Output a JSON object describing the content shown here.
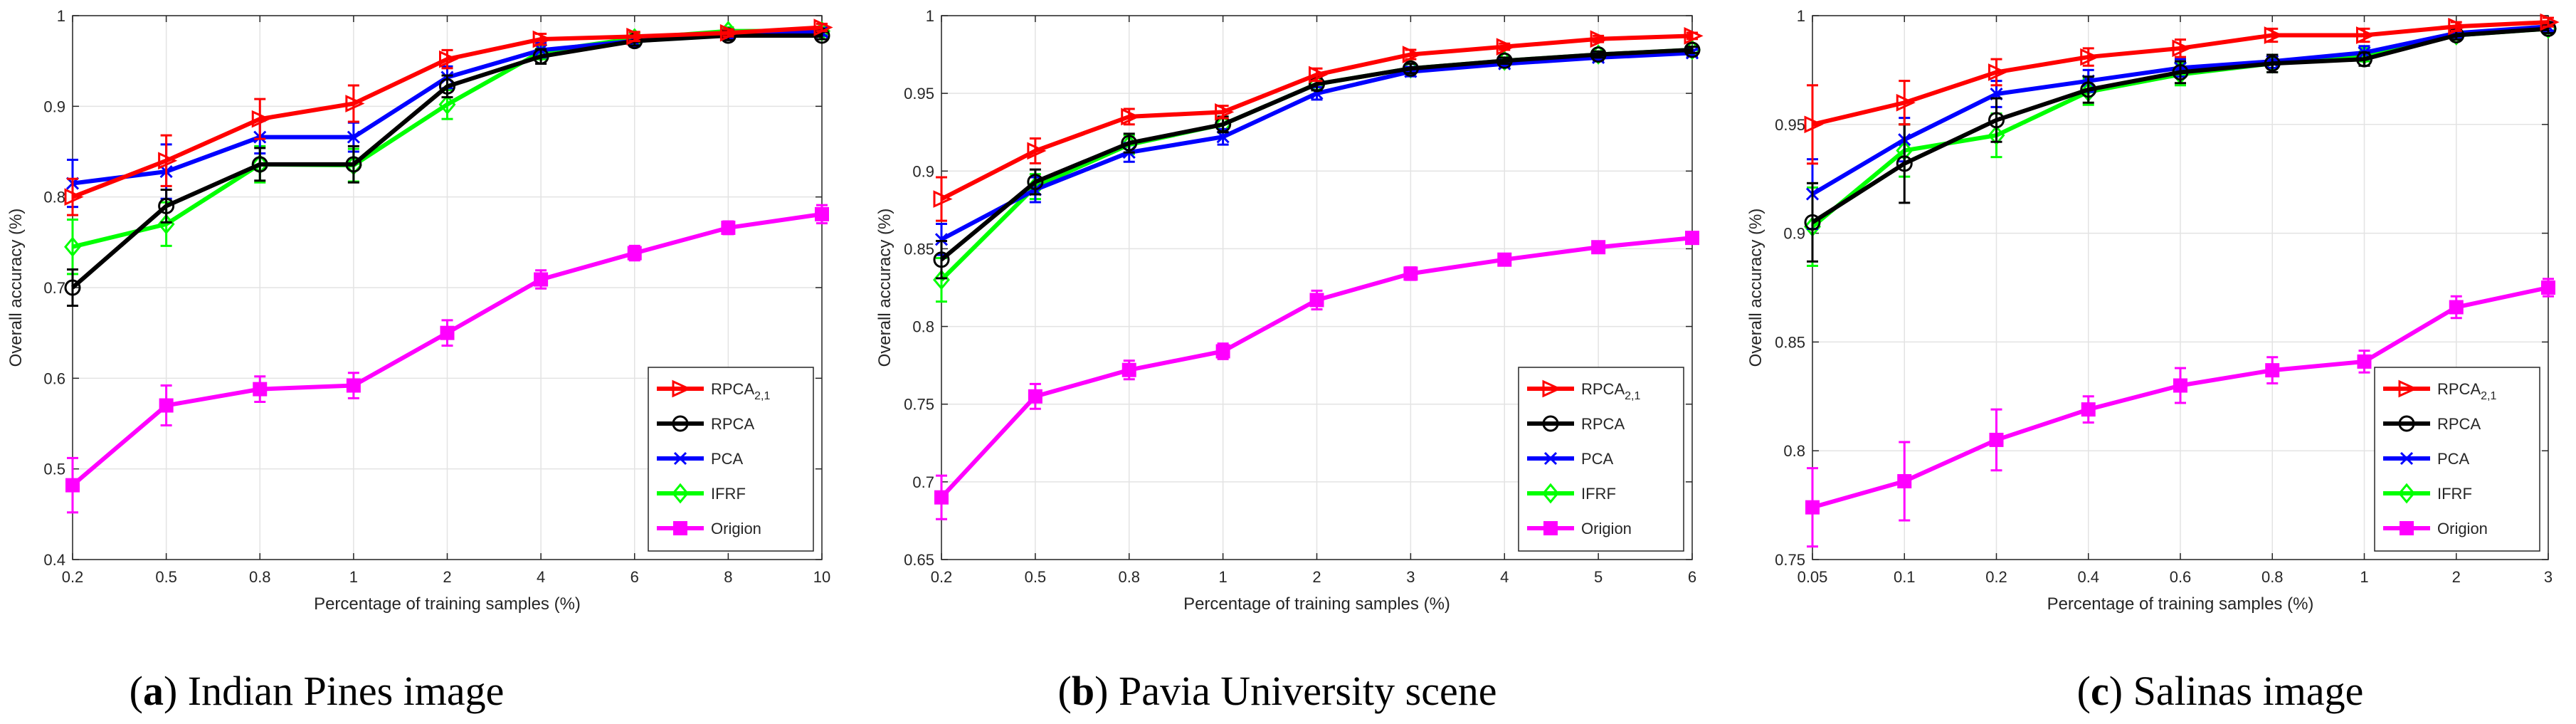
{
  "figure": {
    "captions": [
      {
        "letter": "a",
        "text": "Indian Pines image"
      },
      {
        "letter": "b",
        "text": "Pavia University scene"
      },
      {
        "letter": "c",
        "text": "Salinas image"
      }
    ]
  },
  "chart_data": [
    {
      "type": "line",
      "title": "",
      "xlabel": "Percentage of training samples (%)",
      "ylabel": "Overall accuracy (%)",
      "categories": [
        "0.2",
        "0.5",
        "0.8",
        "1",
        "2",
        "4",
        "6",
        "8",
        "10"
      ],
      "ylim": [
        0.4,
        1.0
      ],
      "yticks": [
        0.4,
        0.5,
        0.6,
        0.7,
        0.8,
        0.9,
        1
      ],
      "ytick_labels": [
        "0.4",
        "0.5",
        "0.6",
        "0.7",
        "0.8",
        "0.9",
        "1"
      ],
      "grid": true,
      "legend": "bottom-right",
      "series": [
        {
          "name": "RPCA",
          "sub": "2,1",
          "color": "#ff0000",
          "marker": "triangle-right",
          "values": [
            0.8,
            0.84,
            0.886,
            0.903,
            0.952,
            0.974,
            0.977,
            0.981,
            0.987
          ],
          "errors": [
            0.02,
            0.028,
            0.022,
            0.02,
            0.01,
            0.006,
            0.005,
            0.004,
            0.004
          ]
        },
        {
          "name": "RPCA",
          "sub": "",
          "color": "#000000",
          "marker": "circle",
          "values": [
            0.7,
            0.79,
            0.836,
            0.836,
            0.922,
            0.955,
            0.972,
            0.978,
            0.978
          ],
          "errors": [
            0.02,
            0.018,
            0.018,
            0.02,
            0.012,
            0.008,
            0.005,
            0.005,
            0.004
          ]
        },
        {
          "name": "PCA",
          "sub": "",
          "color": "#0000ff",
          "marker": "x",
          "values": [
            0.815,
            0.828,
            0.866,
            0.866,
            0.932,
            0.962,
            0.972,
            0.979,
            0.982
          ],
          "errors": [
            0.026,
            0.03,
            0.018,
            0.016,
            0.012,
            0.008,
            0.006,
            0.004,
            0.004
          ]
        },
        {
          "name": "IFRF",
          "sub": "",
          "color": "#00ff00",
          "marker": "diamond",
          "values": [
            0.745,
            0.77,
            0.836,
            0.835,
            0.902,
            0.96,
            0.975,
            0.983,
            0.983
          ],
          "errors": [
            0.03,
            0.024,
            0.02,
            0.018,
            0.016,
            0.008,
            0.006,
            0.004,
            0.004
          ]
        },
        {
          "name": "Origion",
          "sub": "",
          "color": "#ff00ff",
          "marker": "square",
          "values": [
            0.482,
            0.57,
            0.588,
            0.592,
            0.65,
            0.709,
            0.738,
            0.766,
            0.781
          ],
          "errors": [
            0.03,
            0.022,
            0.014,
            0.014,
            0.014,
            0.01,
            0.008,
            0.007,
            0.01
          ]
        }
      ]
    },
    {
      "type": "line",
      "title": "",
      "xlabel": "Percentage of training samples (%)",
      "ylabel": "Overall accuracy (%)",
      "categories": [
        "0.2",
        "0.5",
        "0.8",
        "1",
        "2",
        "3",
        "4",
        "5",
        "6"
      ],
      "ylim": [
        0.65,
        1.0
      ],
      "yticks": [
        0.65,
        0.7,
        0.75,
        0.8,
        0.85,
        0.9,
        0.95,
        1
      ],
      "ytick_labels": [
        "0.65",
        "0.7",
        "0.75",
        "0.8",
        "0.85",
        "0.9",
        "0.95",
        "1"
      ],
      "grid": true,
      "legend": "bottom-right",
      "series": [
        {
          "name": "RPCA",
          "sub": "2,1",
          "color": "#ff0000",
          "marker": "triangle-right",
          "values": [
            0.882,
            0.913,
            0.935,
            0.938,
            0.962,
            0.975,
            0.98,
            0.985,
            0.987
          ],
          "errors": [
            0.014,
            0.008,
            0.005,
            0.004,
            0.004,
            0.003,
            0.002,
            0.002,
            0.002
          ]
        },
        {
          "name": "RPCA",
          "sub": "",
          "color": "#000000",
          "marker": "circle",
          "values": [
            0.843,
            0.893,
            0.918,
            0.93,
            0.956,
            0.966,
            0.971,
            0.975,
            0.978
          ],
          "errors": [
            0.012,
            0.008,
            0.006,
            0.005,
            0.004,
            0.003,
            0.002,
            0.002,
            0.002
          ]
        },
        {
          "name": "PCA",
          "sub": "",
          "color": "#0000ff",
          "marker": "x",
          "values": [
            0.856,
            0.888,
            0.912,
            0.922,
            0.95,
            0.964,
            0.969,
            0.973,
            0.976
          ],
          "errors": [
            0.01,
            0.008,
            0.006,
            0.005,
            0.004,
            0.003,
            0.002,
            0.002,
            0.002
          ]
        },
        {
          "name": "IFRF",
          "sub": "",
          "color": "#00ff00",
          "marker": "diamond",
          "values": [
            0.83,
            0.89,
            0.917,
            0.93,
            0.956,
            0.966,
            0.971,
            0.975,
            0.978
          ],
          "errors": [
            0.014,
            0.008,
            0.006,
            0.005,
            0.004,
            0.003,
            0.002,
            0.002,
            0.002
          ]
        },
        {
          "name": "Origion",
          "sub": "",
          "color": "#ff00ff",
          "marker": "square",
          "values": [
            0.69,
            0.755,
            0.772,
            0.784,
            0.817,
            0.834,
            0.843,
            0.851,
            0.857
          ],
          "errors": [
            0.014,
            0.008,
            0.006,
            0.005,
            0.006,
            0.004,
            0.003,
            0.003,
            0.003
          ]
        }
      ]
    },
    {
      "type": "line",
      "title": "",
      "xlabel": "Percentage of training samples (%)",
      "ylabel": "Overall accuracy (%)",
      "categories": [
        "0.05",
        "0.1",
        "0.2",
        "0.4",
        "0.6",
        "0.8",
        "1",
        "2",
        "3"
      ],
      "ylim": [
        0.75,
        1.0
      ],
      "yticks": [
        0.75,
        0.8,
        0.85,
        0.9,
        0.95,
        1
      ],
      "ytick_labels": [
        "0.75",
        "0.8",
        "0.85",
        "0.9",
        "0.95",
        "1"
      ],
      "grid": true,
      "legend": "bottom-right",
      "series": [
        {
          "name": "RPCA",
          "sub": "2,1",
          "color": "#ff0000",
          "marker": "triangle-right",
          "values": [
            0.95,
            0.96,
            0.974,
            0.981,
            0.985,
            0.991,
            0.991,
            0.995,
            0.997
          ],
          "errors": [
            0.018,
            0.01,
            0.006,
            0.004,
            0.004,
            0.003,
            0.003,
            0.002,
            0.002
          ]
        },
        {
          "name": "RPCA",
          "sub": "",
          "color": "#000000",
          "marker": "circle",
          "values": [
            0.905,
            0.932,
            0.952,
            0.966,
            0.974,
            0.978,
            0.98,
            0.991,
            0.994
          ],
          "errors": [
            0.018,
            0.018,
            0.01,
            0.006,
            0.005,
            0.004,
            0.003,
            0.002,
            0.002
          ]
        },
        {
          "name": "PCA",
          "sub": "",
          "color": "#0000ff",
          "marker": "x",
          "values": [
            0.918,
            0.943,
            0.964,
            0.97,
            0.976,
            0.979,
            0.983,
            0.992,
            0.995
          ],
          "errors": [
            0.016,
            0.01,
            0.006,
            0.005,
            0.004,
            0.003,
            0.003,
            0.002,
            0.002
          ]
        },
        {
          "name": "IFRF",
          "sub": "",
          "color": "#00ff00",
          "marker": "diamond",
          "values": [
            0.903,
            0.938,
            0.945,
            0.965,
            0.973,
            0.978,
            0.982,
            0.991,
            0.994
          ],
          "errors": [
            0.018,
            0.012,
            0.01,
            0.006,
            0.005,
            0.004,
            0.003,
            0.002,
            0.002
          ]
        },
        {
          "name": "Origion",
          "sub": "",
          "color": "#ff00ff",
          "marker": "square",
          "values": [
            0.774,
            0.786,
            0.805,
            0.819,
            0.83,
            0.837,
            0.841,
            0.866,
            0.875
          ],
          "errors": [
            0.018,
            0.018,
            0.014,
            0.006,
            0.008,
            0.006,
            0.005,
            0.005,
            0.004
          ]
        }
      ]
    }
  ]
}
